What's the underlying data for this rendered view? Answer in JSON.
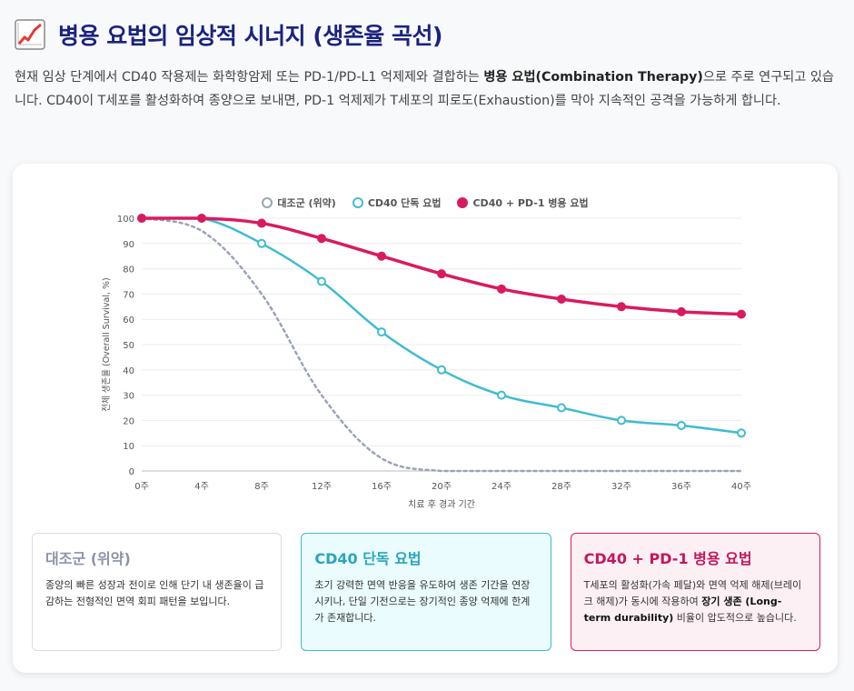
{
  "header": {
    "icon": "chart-increasing-icon",
    "title": "병용 요법의 임상적 시너지 (생존율 곡선)"
  },
  "intro": {
    "part1": "현재 임상 단계에서 CD40 작용제는 화학항암제 또는 PD-1/PD-L1 억제제와 결합하는 ",
    "bold": "병용 요법(Combination Therapy)",
    "part2": "으로 주로 연구되고 있습니다. CD40이 T세포를 활성화하여 종양으로 보내면, PD-1 억제제가 T세포의 피로도(Exhaustion)를 막아 지속적인 공격을 가능하게 합니다."
  },
  "colors": {
    "control": "#9aa3b8",
    "mono": "#3fbcd0",
    "combo": "#d81b60",
    "title": "#1a237e"
  },
  "chart_data": {
    "type": "line",
    "title": "",
    "xlabel": "치료 후 경과 기간",
    "ylabel": "전체 생존율 (Overall Survival, %)",
    "ylim": [
      0,
      100
    ],
    "yticks": [
      0,
      10,
      20,
      30,
      40,
      50,
      60,
      70,
      80,
      90,
      100
    ],
    "categories": [
      "0주",
      "4주",
      "8주",
      "12주",
      "16주",
      "20주",
      "24주",
      "28주",
      "32주",
      "36주",
      "40주"
    ],
    "legend_position": "top-center",
    "grid": true,
    "series": [
      {
        "name": "대조군 (위약)",
        "key": "control",
        "style": "dotted",
        "values": [
          100,
          95,
          70,
          30,
          5,
          0,
          0,
          0,
          0,
          0,
          0
        ]
      },
      {
        "name": "CD40 단독 요법",
        "key": "mono",
        "style": "solid-hollow",
        "values": [
          100,
          100,
          90,
          75,
          55,
          40,
          30,
          25,
          20,
          18,
          15
        ]
      },
      {
        "name": "CD40 + PD-1 병용 요법",
        "key": "combo",
        "style": "solid-filled",
        "values": [
          100,
          100,
          98,
          92,
          85,
          78,
          72,
          68,
          65,
          63,
          62
        ]
      }
    ]
  },
  "cards": {
    "control": {
      "title": "대조군 (위약)",
      "text": "종양의 빠른 성장과 전이로 인해 단기 내 생존율이 급감하는 전형적인 면역 회피 패턴을 보입니다."
    },
    "mono": {
      "title": "CD40 단독 요법",
      "text": "초기 강력한 면역 반응을 유도하여 생존 기간을 연장시키나, 단일 기전으로는 장기적인 종양 억제에 한계가 존재합니다."
    },
    "combo": {
      "title": "CD40 + PD-1 병용 요법",
      "text_part1": "T세포의 활성화(가속 페달)와 면역 억제 해제(브레이크 해제)가 동시에 작용하여 ",
      "text_bold": "장기 생존 (Long-term durability)",
      "text_part2": " 비율이 압도적으로 높습니다."
    }
  }
}
